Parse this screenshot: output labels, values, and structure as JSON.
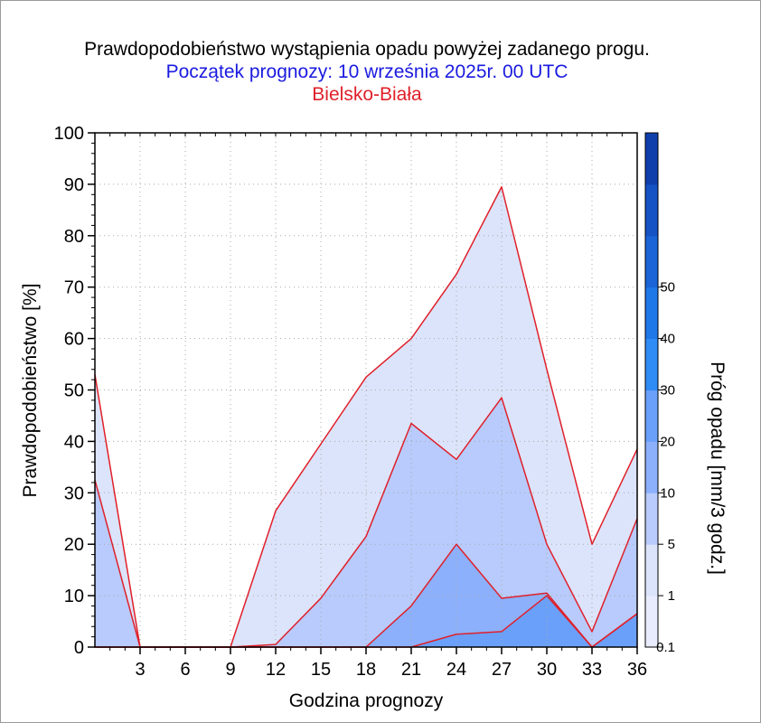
{
  "titles": {
    "line1": "Prawdopodobieństwo wystąpienia opadu powyżej zadanego progu.",
    "line2": "Początek prognozy: 10 września 2025r. 00 UTC",
    "line3": "Bielsko-Biała"
  },
  "colors": {
    "title2": "#1a1ae0",
    "title3": "#e0202a",
    "series_line": "#e0202a"
  },
  "chart_data": {
    "type": "area",
    "xlabel": "Godzina prognozy",
    "ylabel": "Prawdopodobieństwo [%]",
    "xlim": [
      0,
      36
    ],
    "ylim": [
      0,
      100
    ],
    "x_ticks": [
      3,
      6,
      9,
      12,
      15,
      18,
      21,
      24,
      27,
      30,
      33,
      36
    ],
    "y_ticks": [
      0,
      10,
      20,
      30,
      40,
      50,
      60,
      70,
      80,
      90,
      100
    ],
    "grid": true,
    "x": [
      0,
      3,
      6,
      9,
      12,
      15,
      18,
      21,
      24,
      27,
      30,
      33,
      36
    ],
    "series": [
      {
        "threshold": "0.1",
        "color": "#dce4fb",
        "values": [
          53,
          0,
          0,
          0,
          26.5,
          39.5,
          52.5,
          60,
          72.5,
          89.5,
          54,
          20,
          38.5
        ]
      },
      {
        "threshold": "1",
        "color": "#b8cbfc",
        "values": [
          32.5,
          0,
          0,
          0,
          0.5,
          9.5,
          21.5,
          43.5,
          36.5,
          48.5,
          20,
          3,
          25
        ]
      },
      {
        "threshold": "5",
        "color": "#8cb0fb",
        "values": [
          0,
          0,
          0,
          0,
          0,
          0,
          0,
          8,
          20,
          9.5,
          10.5,
          0,
          6.5
        ]
      },
      {
        "threshold": "10",
        "color": "#6aa0f9",
        "values": [
          0,
          0,
          0,
          0,
          0,
          0,
          0,
          0,
          2.5,
          3,
          10,
          0,
          6.5
        ]
      }
    ],
    "colorbar": {
      "label": "Próg opadu [mm/3 godz.]",
      "tick_labels": [
        "0.1",
        "1",
        "5",
        "10",
        "20",
        "30",
        "40",
        "50"
      ],
      "colors": [
        "#e8ecfd",
        "#dce4fb",
        "#b8cbfc",
        "#8cb0fb",
        "#6aa0f9",
        "#2f8bf5",
        "#1f78e8",
        "#1a64d8",
        "#1552c4",
        "#0f3fab"
      ]
    }
  }
}
